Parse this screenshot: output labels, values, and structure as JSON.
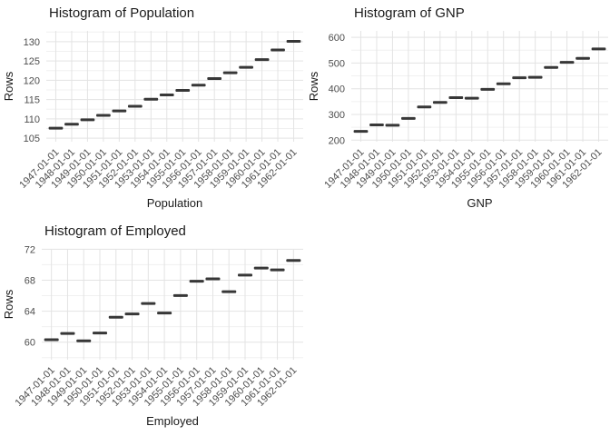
{
  "colors": {
    "background": "#ffffff",
    "mark": "#373737",
    "grid_major": "#e3e3e3",
    "grid_minor": "#f0f0f0",
    "tick_label": "#4d4d4d",
    "axis_title": "#1a1a1a",
    "plot_title": "#1a1a1a"
  },
  "chart_data": [
    {
      "type": "scatter",
      "marker": "dash",
      "title": "Histogram of Population",
      "xlabel": "Population",
      "ylabel": "Rows",
      "categories": [
        "1947-01-01",
        "1948-01-01",
        "1949-01-01",
        "1950-01-01",
        "1951-01-01",
        "1952-01-01",
        "1953-01-01",
        "1954-01-01",
        "1955-01-01",
        "1956-01-01",
        "1957-01-01",
        "1958-01-01",
        "1959-01-01",
        "1960-01-01",
        "1961-01-01",
        "1962-01-01"
      ],
      "values": [
        107.608,
        108.632,
        109.773,
        110.929,
        112.075,
        113.27,
        115.094,
        116.219,
        117.388,
        118.734,
        120.445,
        121.95,
        123.366,
        125.368,
        127.852,
        130.081
      ],
      "yticks": [
        105,
        110,
        115,
        120,
        125,
        130
      ],
      "yticks_minor": [
        107.5,
        112.5,
        117.5,
        122.5,
        127.5,
        132.5
      ],
      "ylim": [
        104.1,
        132.8
      ],
      "grid": true,
      "legend": "none"
    },
    {
      "type": "scatter",
      "marker": "dash",
      "title": "Histogram of GNP",
      "xlabel": "GNP",
      "ylabel": "Rows",
      "categories": [
        "1947-01-01",
        "1948-01-01",
        "1949-01-01",
        "1950-01-01",
        "1951-01-01",
        "1952-01-01",
        "1953-01-01",
        "1954-01-01",
        "1955-01-01",
        "1956-01-01",
        "1957-01-01",
        "1958-01-01",
        "1959-01-01",
        "1960-01-01",
        "1961-01-01",
        "1962-01-01"
      ],
      "values": [
        234.289,
        259.426,
        258.054,
        284.599,
        328.975,
        346.999,
        365.385,
        363.112,
        397.469,
        419.18,
        442.769,
        444.546,
        482.704,
        502.601,
        518.173,
        554.894
      ],
      "yticks": [
        200,
        300,
        400,
        500,
        600
      ],
      "yticks_minor": [
        250,
        350,
        450,
        550
      ],
      "ylim": [
        194,
        625
      ],
      "grid": true,
      "legend": "none"
    },
    {
      "type": "scatter",
      "marker": "dash",
      "title": "Histogram of Employed",
      "xlabel": "Employed",
      "ylabel": "Rows",
      "categories": [
        "1947-01-01",
        "1948-01-01",
        "1949-01-01",
        "1950-01-01",
        "1951-01-01",
        "1952-01-01",
        "1953-01-01",
        "1954-01-01",
        "1955-01-01",
        "1956-01-01",
        "1957-01-01",
        "1958-01-01",
        "1959-01-01",
        "1960-01-01",
        "1961-01-01",
        "1962-01-01"
      ],
      "values": [
        60.323,
        61.122,
        60.171,
        61.187,
        63.221,
        63.639,
        64.989,
        63.761,
        66.019,
        67.857,
        68.169,
        66.513,
        68.655,
        69.564,
        69.331,
        70.551
      ],
      "yticks": [
        60,
        64,
        68,
        72
      ],
      "yticks_minor": [
        58,
        62,
        66,
        70
      ],
      "ylim": [
        57.74,
        72.04
      ],
      "grid": true,
      "legend": "none"
    }
  ]
}
